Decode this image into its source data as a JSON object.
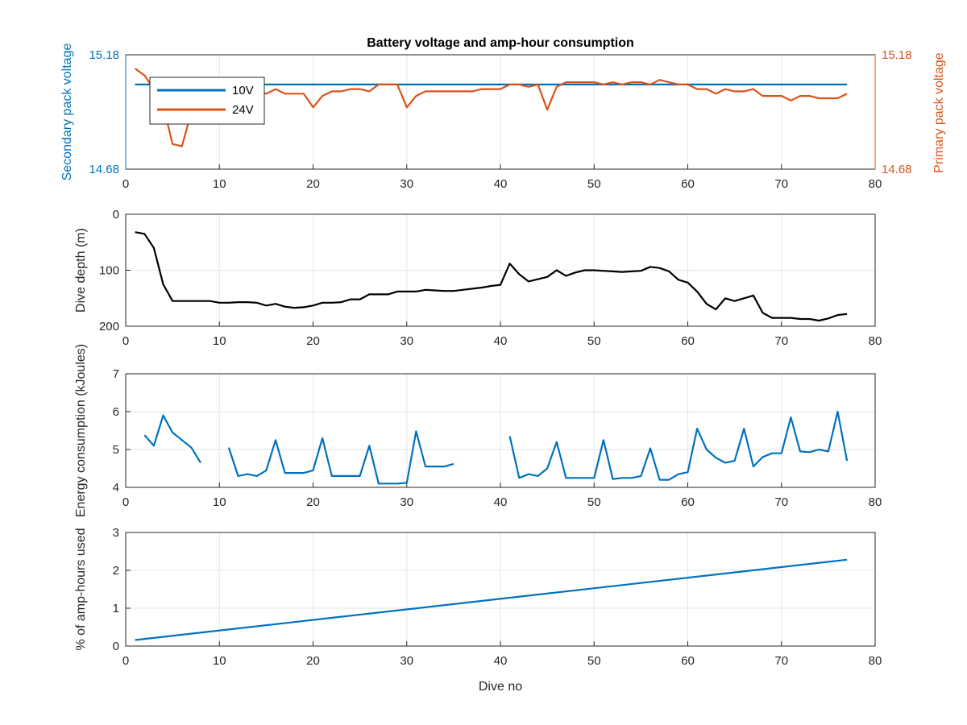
{
  "colors": {
    "series_blue": "#0072BD",
    "series_orange": "#D95319",
    "series_black": "#000000",
    "grid": "#e6e6e6",
    "axis": "#262626",
    "background": "#ffffff"
  },
  "chart_data": [
    {
      "type": "line",
      "title": "Battery voltage and amp-hour consumption",
      "xlabel": "",
      "ylabel_left": "Secondary pack voltage",
      "ylabel_right": "Primary pack voltage",
      "xlim": [
        0,
        80
      ],
      "ylim_left": [
        14.68,
        15.18
      ],
      "ylim_right": [
        14.68,
        15.18
      ],
      "xticks": [
        "0",
        "10",
        "20",
        "30",
        "40",
        "50",
        "60",
        "70",
        "80"
      ],
      "yticks_left": [
        "14.68",
        "15.18"
      ],
      "yticks_right": [
        "14.68",
        "15.18"
      ],
      "grid": true,
      "legend": {
        "position": "top-left",
        "entries": [
          "10V",
          "24V"
        ]
      },
      "series": [
        {
          "name": "10V",
          "axis": "left",
          "color": "#0072BD",
          "points": [
            [
              1,
              15.05
            ],
            [
              77,
              15.05
            ]
          ]
        },
        {
          "name": "24V",
          "axis": "right",
          "color": "#D95319",
          "points": [
            [
              1,
              15.12
            ],
            [
              2,
              15.09
            ],
            [
              3,
              15.03
            ],
            [
              4,
              14.96
            ],
            [
              5,
              14.79
            ],
            [
              6,
              14.78
            ],
            [
              7,
              14.93
            ],
            [
              8,
              15.02
            ],
            [
              11,
              15.0
            ],
            [
              12,
              15.02
            ],
            [
              13,
              15.03
            ],
            [
              14,
              15.02
            ],
            [
              15,
              15.01
            ],
            [
              16,
              15.03
            ],
            [
              17,
              15.01
            ],
            [
              18,
              15.01
            ],
            [
              19,
              15.01
            ],
            [
              20,
              14.95
            ],
            [
              21,
              15.0
            ],
            [
              22,
              15.02
            ],
            [
              23,
              15.02
            ],
            [
              24,
              15.03
            ],
            [
              25,
              15.03
            ],
            [
              26,
              15.02
            ],
            [
              27,
              15.05
            ],
            [
              28,
              15.05
            ],
            [
              29,
              15.05
            ],
            [
              30,
              14.95
            ],
            [
              31,
              15.0
            ],
            [
              32,
              15.02
            ],
            [
              33,
              15.02
            ],
            [
              34,
              15.02
            ],
            [
              35,
              15.02
            ],
            [
              36,
              15.02
            ],
            [
              37,
              15.02
            ],
            [
              38,
              15.03
            ],
            [
              39,
              15.03
            ],
            [
              40,
              15.03
            ],
            [
              41,
              15.05
            ],
            [
              42,
              15.05
            ],
            [
              43,
              15.04
            ],
            [
              44,
              15.05
            ],
            [
              45,
              14.94
            ],
            [
              46,
              15.04
            ],
            [
              47,
              15.06
            ],
            [
              48,
              15.06
            ],
            [
              49,
              15.06
            ],
            [
              50,
              15.06
            ],
            [
              51,
              15.05
            ],
            [
              52,
              15.06
            ],
            [
              53,
              15.05
            ],
            [
              54,
              15.06
            ],
            [
              55,
              15.06
            ],
            [
              56,
              15.05
            ],
            [
              57,
              15.07
            ],
            [
              58,
              15.06
            ],
            [
              59,
              15.05
            ],
            [
              60,
              15.05
            ],
            [
              61,
              15.03
            ],
            [
              62,
              15.03
            ],
            [
              63,
              15.01
            ],
            [
              64,
              15.03
            ],
            [
              65,
              15.02
            ],
            [
              66,
              15.02
            ],
            [
              67,
              15.03
            ],
            [
              68,
              15.0
            ],
            [
              69,
              15.0
            ],
            [
              70,
              15.0
            ],
            [
              71,
              14.98
            ],
            [
              72,
              15.0
            ],
            [
              73,
              15.0
            ],
            [
              74,
              14.99
            ],
            [
              75,
              14.99
            ],
            [
              76,
              14.99
            ],
            [
              77,
              15.01
            ]
          ]
        }
      ]
    },
    {
      "type": "line",
      "title": "",
      "xlabel": "",
      "ylabel": "Dive depth (m)",
      "xlim": [
        0,
        80
      ],
      "ylim": [
        0,
        200
      ],
      "y_reversed": true,
      "xticks": [
        "0",
        "10",
        "20",
        "30",
        "40",
        "50",
        "60",
        "70",
        "80"
      ],
      "yticks": [
        "0",
        "100",
        "200"
      ],
      "grid": true,
      "series": [
        {
          "color": "#000000",
          "points": [
            [
              1,
              32
            ],
            [
              2,
              35
            ],
            [
              3,
              60
            ],
            [
              4,
              125
            ],
            [
              5,
              155
            ],
            [
              6,
              155
            ],
            [
              7,
              155
            ],
            [
              8,
              155
            ],
            [
              9,
              155
            ],
            [
              10,
              158
            ],
            [
              11,
              158
            ],
            [
              12,
              157
            ],
            [
              13,
              157
            ],
            [
              14,
              158
            ],
            [
              15,
              163
            ],
            [
              16,
              160
            ],
            [
              17,
              165
            ],
            [
              18,
              167
            ],
            [
              19,
              166
            ],
            [
              20,
              163
            ],
            [
              21,
              158
            ],
            [
              22,
              158
            ],
            [
              23,
              157
            ],
            [
              24,
              152
            ],
            [
              25,
              152
            ],
            [
              26,
              143
            ],
            [
              27,
              143
            ],
            [
              28,
              143
            ],
            [
              29,
              138
            ],
            [
              30,
              138
            ],
            [
              31,
              138
            ],
            [
              32,
              135
            ],
            [
              33,
              136
            ],
            [
              34,
              137
            ],
            [
              35,
              137
            ],
            [
              36,
              135
            ],
            [
              37,
              133
            ],
            [
              38,
              131
            ],
            [
              39,
              128
            ],
            [
              40,
              126
            ],
            [
              41,
              88
            ],
            [
              42,
              107
            ],
            [
              43,
              120
            ],
            [
              44,
              116
            ],
            [
              45,
              112
            ],
            [
              46,
              100
            ],
            [
              47,
              110
            ],
            [
              48,
              104
            ],
            [
              49,
              100
            ],
            [
              50,
              100
            ],
            [
              51,
              101
            ],
            [
              52,
              102
            ],
            [
              53,
              103
            ],
            [
              54,
              102
            ],
            [
              55,
              101
            ],
            [
              56,
              94
            ],
            [
              57,
              96
            ],
            [
              58,
              102
            ],
            [
              59,
              117
            ],
            [
              60,
              122
            ],
            [
              61,
              138
            ],
            [
              62,
              160
            ],
            [
              63,
              170
            ],
            [
              64,
              150
            ],
            [
              65,
              155
            ],
            [
              66,
              150
            ],
            [
              67,
              145
            ],
            [
              68,
              176
            ],
            [
              69,
              185
            ],
            [
              70,
              185
            ],
            [
              71,
              185
            ],
            [
              72,
              187
            ],
            [
              73,
              187
            ],
            [
              74,
              190
            ],
            [
              75,
              186
            ],
            [
              76,
              180
            ],
            [
              77,
              178
            ]
          ]
        }
      ]
    },
    {
      "type": "line",
      "title": "",
      "xlabel": "",
      "ylabel": "Energy consumption (kJoules)",
      "xlim": [
        0,
        80
      ],
      "ylim": [
        4,
        7
      ],
      "xticks": [
        "0",
        "10",
        "20",
        "30",
        "40",
        "50",
        "60",
        "70",
        "80"
      ],
      "yticks": [
        "4",
        "5",
        "6",
        "7"
      ],
      "grid": true,
      "series": [
        {
          "color": "#0072BD",
          "segments": [
            [
              [
                2,
                5.38
              ],
              [
                3,
                5.1
              ],
              [
                4,
                5.9
              ],
              [
                5,
                5.45
              ],
              [
                6,
                5.25
              ],
              [
                7,
                5.05
              ],
              [
                8,
                4.65
              ]
            ],
            [
              [
                11,
                5.05
              ],
              [
                12,
                4.3
              ],
              [
                13,
                4.35
              ],
              [
                14,
                4.3
              ],
              [
                15,
                4.45
              ],
              [
                16,
                5.25
              ],
              [
                17,
                4.38
              ],
              [
                18,
                4.38
              ],
              [
                19,
                4.38
              ],
              [
                20,
                4.45
              ],
              [
                21,
                5.3
              ],
              [
                22,
                4.3
              ],
              [
                23,
                4.3
              ],
              [
                24,
                4.3
              ],
              [
                25,
                4.3
              ],
              [
                26,
                5.1
              ],
              [
                27,
                4.1
              ],
              [
                28,
                4.1
              ],
              [
                29,
                4.1
              ],
              [
                30,
                4.12
              ],
              [
                31,
                5.48
              ],
              [
                32,
                4.55
              ],
              [
                33,
                4.55
              ],
              [
                34,
                4.55
              ],
              [
                35,
                4.62
              ]
            ],
            [
              [
                41,
                5.35
              ],
              [
                42,
                4.25
              ],
              [
                43,
                4.35
              ],
              [
                44,
                4.3
              ],
              [
                45,
                4.5
              ],
              [
                46,
                5.2
              ],
              [
                47,
                4.25
              ],
              [
                48,
                4.25
              ],
              [
                49,
                4.25
              ],
              [
                50,
                4.25
              ],
              [
                51,
                5.25
              ],
              [
                52,
                4.22
              ],
              [
                53,
                4.25
              ],
              [
                54,
                4.25
              ],
              [
                55,
                4.3
              ],
              [
                56,
                5.03
              ],
              [
                57,
                4.2
              ],
              [
                58,
                4.2
              ],
              [
                59,
                4.35
              ],
              [
                60,
                4.4
              ],
              [
                61,
                5.55
              ],
              [
                62,
                5.0
              ],
              [
                63,
                4.78
              ],
              [
                64,
                4.65
              ],
              [
                65,
                4.7
              ],
              [
                66,
                5.55
              ],
              [
                67,
                4.55
              ],
              [
                68,
                4.8
              ],
              [
                69,
                4.9
              ],
              [
                70,
                4.9
              ],
              [
                71,
                5.85
              ],
              [
                72,
                4.95
              ],
              [
                73,
                4.93
              ],
              [
                74,
                5.0
              ],
              [
                75,
                4.95
              ],
              [
                76,
                6.0
              ],
              [
                77,
                4.7
              ]
            ]
          ]
        }
      ]
    },
    {
      "type": "line",
      "title": "",
      "xlabel": "Dive no",
      "ylabel": "% of amp-hours used",
      "xlim": [
        0,
        80
      ],
      "ylim": [
        0,
        3
      ],
      "xticks": [
        "0",
        "10",
        "20",
        "30",
        "40",
        "50",
        "60",
        "70",
        "80"
      ],
      "yticks": [
        "0",
        "1",
        "2",
        "3"
      ],
      "grid": true,
      "series": [
        {
          "color": "#0072BD",
          "points": [
            [
              1,
              0.16
            ],
            [
              77,
              2.28
            ]
          ]
        }
      ]
    }
  ]
}
